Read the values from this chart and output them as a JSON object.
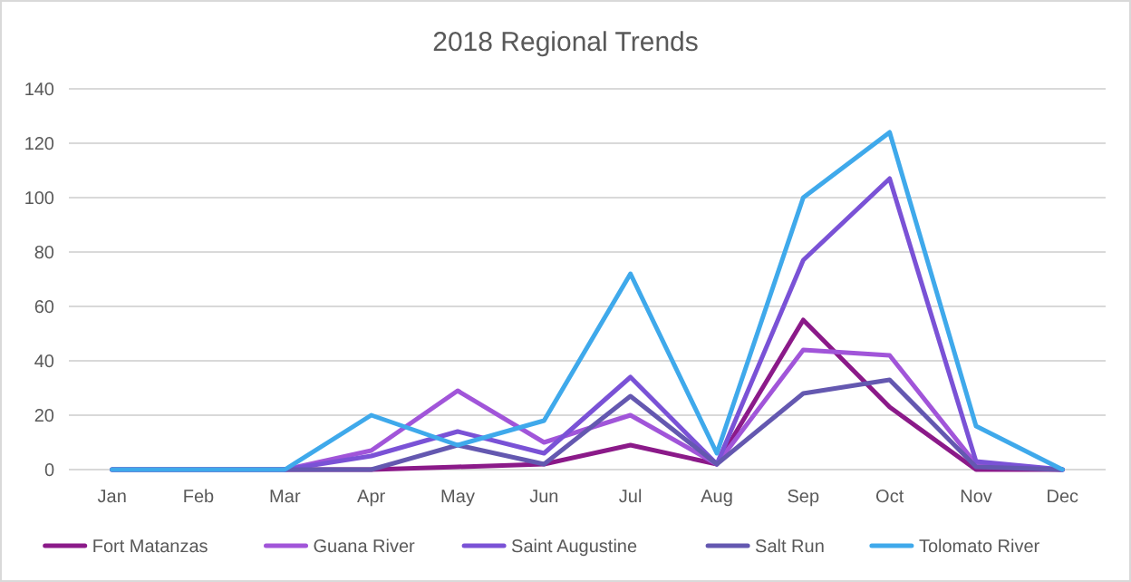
{
  "chart_data": {
    "type": "line",
    "title": "2018 Regional Trends",
    "categories": [
      "Jan",
      "Feb",
      "Mar",
      "Apr",
      "May",
      "Jun",
      "Jul",
      "Aug",
      "Sep",
      "Oct",
      "Nov",
      "Dec"
    ],
    "series": [
      {
        "name": "Fort Matanzas",
        "color": "#8b1a89",
        "values": [
          null,
          null,
          0,
          0,
          1,
          2,
          9,
          2,
          55,
          23,
          0,
          0
        ]
      },
      {
        "name": "Guana River",
        "color": "#a155d9",
        "values": [
          0,
          0,
          0,
          7,
          29,
          10,
          20,
          2,
          44,
          42,
          2,
          0
        ]
      },
      {
        "name": "Saint Augustine",
        "color": "#7a52d6",
        "values": [
          0,
          0,
          0,
          5,
          14,
          6,
          34,
          2,
          77,
          107,
          3,
          0
        ]
      },
      {
        "name": "Salt Run",
        "color": "#6458b0",
        "values": [
          0,
          0,
          0,
          0,
          9,
          2,
          27,
          2,
          28,
          33,
          1,
          0
        ]
      },
      {
        "name": "Tolomato River",
        "color": "#3fa9eb",
        "values": [
          0,
          0,
          0,
          20,
          9,
          18,
          72,
          6,
          100,
          124,
          16,
          0
        ]
      }
    ],
    "ylim": [
      0,
      140
    ],
    "yticks": [
      0,
      20,
      40,
      60,
      80,
      100,
      120,
      140
    ],
    "grid": "y",
    "legend": "bottom",
    "marker": "none",
    "line_style": "solid"
  }
}
